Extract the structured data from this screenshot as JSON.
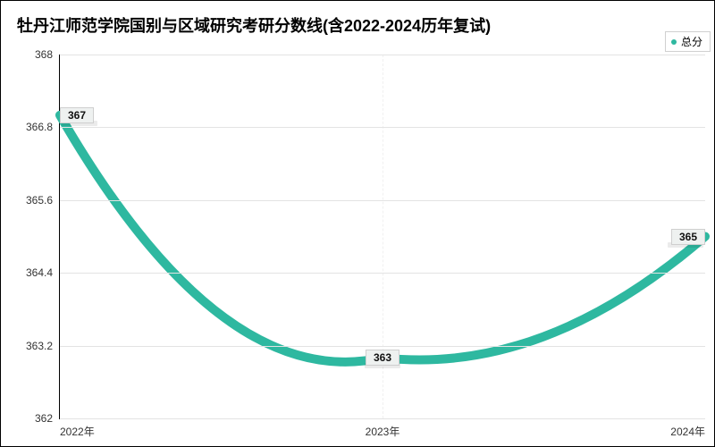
{
  "chart": {
    "type": "line",
    "title": "牡丹江师范学院国别与区域研究考研分数线(含2022-2024历年复试)",
    "title_fontsize": 18,
    "legend": {
      "label": "总分",
      "marker_color": "#2eb8a0",
      "marker_size": 6
    },
    "categories": [
      "2022年",
      "2023年",
      "2024年"
    ],
    "values": [
      367,
      363,
      365
    ],
    "ylim": [
      362,
      368
    ],
    "yticks": [
      362,
      363.2,
      364.4,
      365.6,
      366.8,
      368
    ],
    "ytick_labels": [
      "362",
      "363.2",
      "364.4",
      "365.6",
      "366.8",
      "368"
    ],
    "line_color": "#2eb8a0",
    "line_width": 2,
    "grid_color": "#e3e3e3",
    "axis_color": "#000000",
    "background_color": "#ffffff",
    "label_fontsize": 12,
    "curve_smooth": true
  }
}
